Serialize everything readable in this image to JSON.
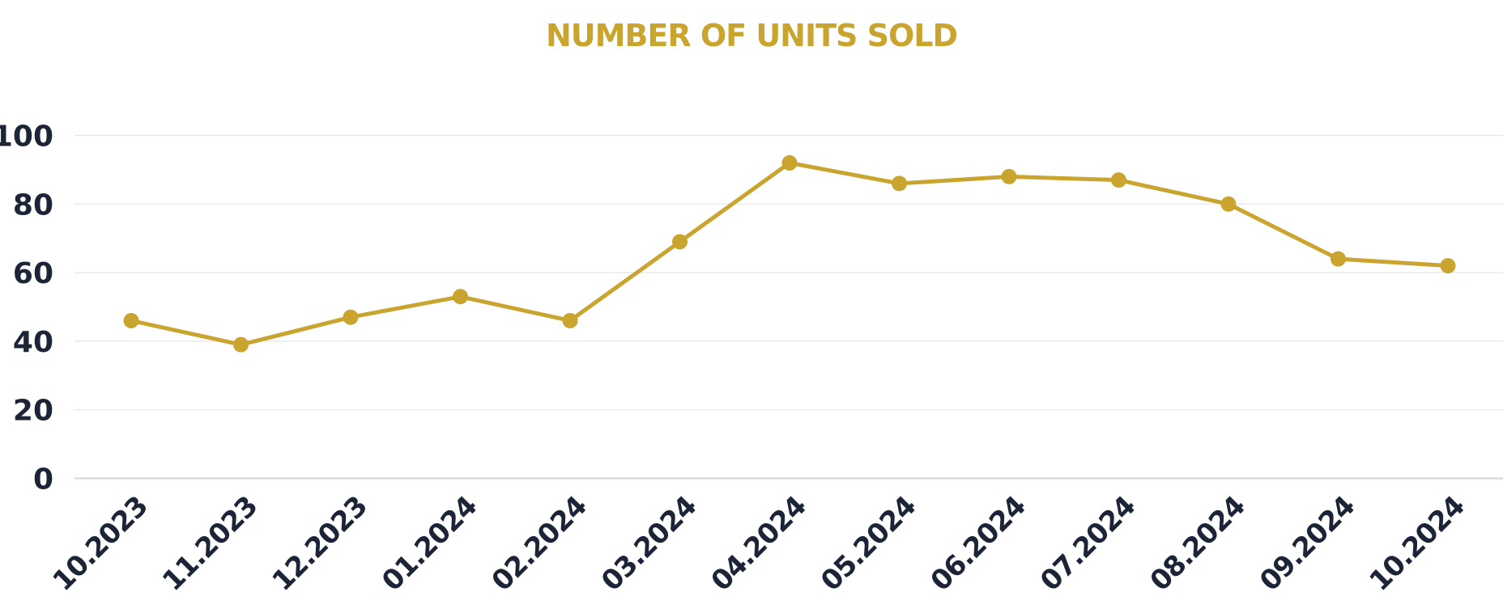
{
  "chart_data": {
    "type": "line",
    "title": "NUMBER OF UNITS SOLD",
    "xlabel": "",
    "ylabel": "",
    "categories": [
      "10.2023",
      "11.2023",
      "12.2023",
      "01.2024",
      "02.2024",
      "03.2024",
      "04.2024",
      "05.2024",
      "06.2024",
      "07.2024",
      "08.2024",
      "09.2024",
      "10.2024"
    ],
    "series": [
      {
        "values": [
          46,
          39,
          47,
          53,
          46,
          69,
          92,
          86,
          88,
          87,
          80,
          64,
          62
        ]
      }
    ],
    "ylim": [
      0,
      100
    ],
    "yticks": [
      0,
      20,
      40,
      60,
      80,
      100
    ],
    "grid": true,
    "legend": "none",
    "colors": {
      "line": "#C9A530",
      "title": "#C9A530",
      "axis_text": "#1B2537",
      "grid": "#E6E6E6"
    }
  }
}
